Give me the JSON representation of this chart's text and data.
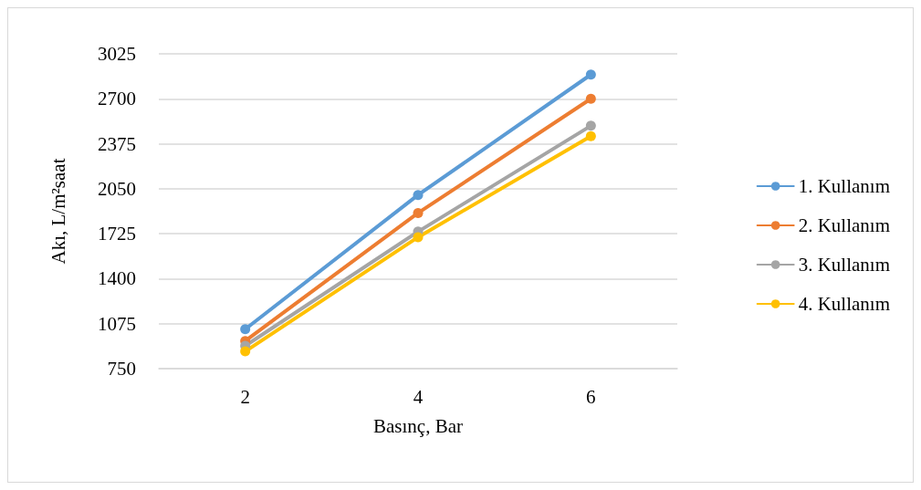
{
  "chart_data": {
    "type": "line",
    "xlabel": "Basınç, Bar",
    "ylabel": "Akı, L/m²saat",
    "categories": [
      "2",
      "4",
      "6"
    ],
    "series": [
      {
        "name": "1. Kullanım",
        "color": "#5b9bd5",
        "values": [
          1035,
          2005,
          2875
        ]
      },
      {
        "name": "2. Kullanım",
        "color": "#ed7d31",
        "values": [
          950,
          1875,
          2700
        ]
      },
      {
        "name": "3. Kullanım",
        "color": "#a5a5a5",
        "values": [
          915,
          1740,
          2505
        ]
      },
      {
        "name": "4. Kullanım",
        "color": "#ffc000",
        "values": [
          875,
          1700,
          2430
        ]
      }
    ],
    "ylim": [
      750,
      3025
    ],
    "yticks": [
      750,
      1075,
      1400,
      1725,
      2050,
      2375,
      2700,
      3025
    ],
    "grid": "y",
    "legend": "right",
    "marker": "circle",
    "line_style": "solid"
  }
}
